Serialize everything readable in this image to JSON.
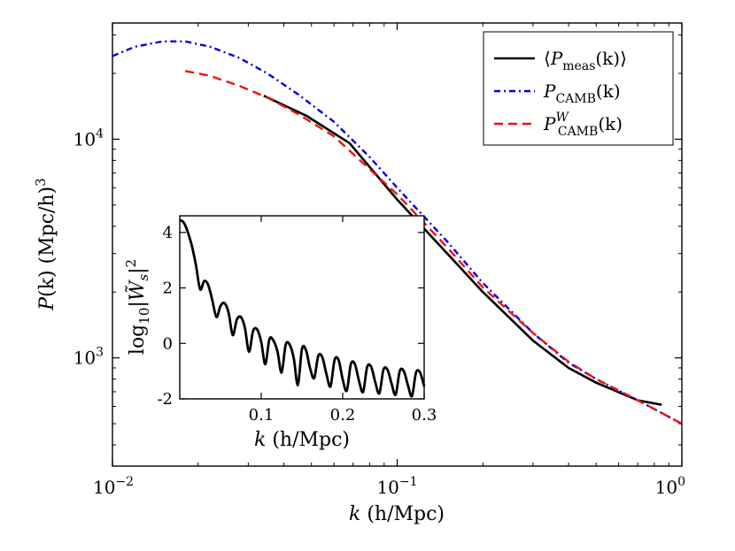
{
  "chart_data": [
    {
      "type": "line",
      "title": "",
      "xlabel": "k (h/Mpc)",
      "ylabel": "P(k) (Mpc/h)^3",
      "xscale": "log",
      "yscale": "log",
      "xlim": [
        0.01,
        1.0
      ],
      "ylim": [
        320,
        34000
      ],
      "x_ticks": [
        {
          "value": 0.01,
          "base": "10",
          "exp": "−2"
        },
        {
          "value": 0.1,
          "base": "10",
          "exp": "−1"
        },
        {
          "value": 1.0,
          "base": "10",
          "exp": "0"
        }
      ],
      "y_ticks": [
        {
          "value": 1000,
          "base": "10",
          "exp": "3"
        },
        {
          "value": 10000,
          "base": "10",
          "exp": "4"
        }
      ],
      "legend_position": "top-right",
      "series": [
        {
          "name": "⟨P_meas(k)⟩",
          "legend": {
            "open": "⟨",
            "main": "P",
            "sub": "meas",
            "arg": "(k)",
            "close": "⟩"
          },
          "color": "#000000",
          "style": "solid",
          "x": [
            0.034,
            0.048,
            0.068,
            0.1,
            0.15,
            0.2,
            0.3,
            0.4,
            0.5,
            0.7,
            0.85
          ],
          "y": [
            15800,
            12800,
            9600,
            5300,
            3000,
            2000,
            1200,
            900,
            770,
            640,
            610
          ]
        },
        {
          "name": "P_CAMB(k)",
          "legend": {
            "open": "",
            "main": "P",
            "sub": "CAMB",
            "arg": "(k)",
            "close": ""
          },
          "color": "#0000dd",
          "style": "dashdot",
          "x": [
            0.01,
            0.012,
            0.015,
            0.018,
            0.022,
            0.028,
            0.035,
            0.045,
            0.06,
            0.08,
            0.1,
            0.15,
            0.2,
            0.3,
            0.4,
            0.5,
            0.7,
            1.0
          ],
          "y": [
            24000,
            26500,
            28000,
            28000,
            26500,
            23500,
            20000,
            16000,
            12000,
            8300,
            6000,
            3400,
            2200,
            1300,
            950,
            800,
            640,
            500
          ]
        },
        {
          "name": "P^W_CAMB(k)",
          "legend": {
            "open": "",
            "main": "P",
            "sub": "CAMB",
            "sup": "W",
            "arg": "(k)",
            "close": ""
          },
          "color": "#ee1111",
          "style": "dashed",
          "x": [
            0.018,
            0.022,
            0.028,
            0.035,
            0.045,
            0.06,
            0.08,
            0.1,
            0.15,
            0.2,
            0.3,
            0.4,
            0.5,
            0.7,
            1.0
          ],
          "y": [
            20500,
            19500,
            17500,
            15500,
            13000,
            10300,
            7300,
            5600,
            3200,
            2100,
            1300,
            960,
            800,
            640,
            500
          ]
        }
      ]
    },
    {
      "type": "line",
      "title": "",
      "xlabel": "k (h/Mpc)",
      "ylabel": "log10|W̃s|^2",
      "ylabel_parts": {
        "log": "log",
        "base": "10",
        "W": "W̃",
        "ws": "s",
        "pow": "2"
      },
      "xlim": [
        0.0,
        0.3
      ],
      "ylim": [
        -2.0,
        4.6
      ],
      "x_ticks": [
        "0.1",
        "0.2",
        "0.3"
      ],
      "x_tick_values": [
        0.1,
        0.2,
        0.3
      ],
      "y_ticks": [
        "4",
        "2",
        "0",
        "-2"
      ],
      "y_tick_values": [
        4,
        2,
        0,
        -2
      ],
      "series": [
        {
          "name": "log10|W̃s|^2",
          "color": "#000000",
          "style": "solid",
          "x": [
            0.0,
            0.005,
            0.01,
            0.015,
            0.02,
            0.025,
            0.03,
            0.035,
            0.04,
            0.045,
            0.05,
            0.055,
            0.06,
            0.065,
            0.07,
            0.075,
            0.08,
            0.085,
            0.09,
            0.095,
            0.1,
            0.105,
            0.11,
            0.115,
            0.12,
            0.125,
            0.13,
            0.135,
            0.14,
            0.145,
            0.15,
            0.155,
            0.16,
            0.165,
            0.17,
            0.175,
            0.18,
            0.185,
            0.19,
            0.195,
            0.2,
            0.205,
            0.21,
            0.215,
            0.22,
            0.225,
            0.23,
            0.235,
            0.24,
            0.245,
            0.25,
            0.255,
            0.26,
            0.265,
            0.27,
            0.275,
            0.28,
            0.285,
            0.29,
            0.295,
            0.3
          ],
          "y": [
            4.45,
            4.35,
            4.0,
            3.5,
            2.8,
            1.95,
            2.25,
            2.1,
            1.55,
            0.95,
            1.35,
            1.45,
            1.1,
            0.3,
            0.85,
            0.95,
            0.55,
            -0.3,
            0.45,
            0.5,
            0.05,
            -0.75,
            0.15,
            0.1,
            -0.3,
            -1.05,
            -0.05,
            -0.05,
            -0.55,
            -1.5,
            -0.2,
            -0.25,
            -0.9,
            -1.25,
            -0.45,
            -0.5,
            -1.1,
            -1.55,
            -0.6,
            -0.6,
            -1.3,
            -1.7,
            -0.75,
            -0.75,
            -1.35,
            -1.75,
            -0.85,
            -0.85,
            -1.4,
            -1.8,
            -0.95,
            -0.95,
            -1.45,
            -1.85,
            -1.0,
            -1.0,
            -1.5,
            -1.9,
            -1.05,
            -1.05,
            -1.55
          ]
        }
      ]
    }
  ],
  "labels": {
    "main_xlabel_var": "k",
    "main_xlabel_unit": " (h/Mpc)",
    "main_ylabel_var": "P",
    "main_ylabel_arg": "(k)",
    "main_ylabel_unit": " (Mpc/h)",
    "main_ylabel_pow": "3",
    "inset_xlabel_var": "k",
    "inset_xlabel_unit": " (h/Mpc)"
  }
}
